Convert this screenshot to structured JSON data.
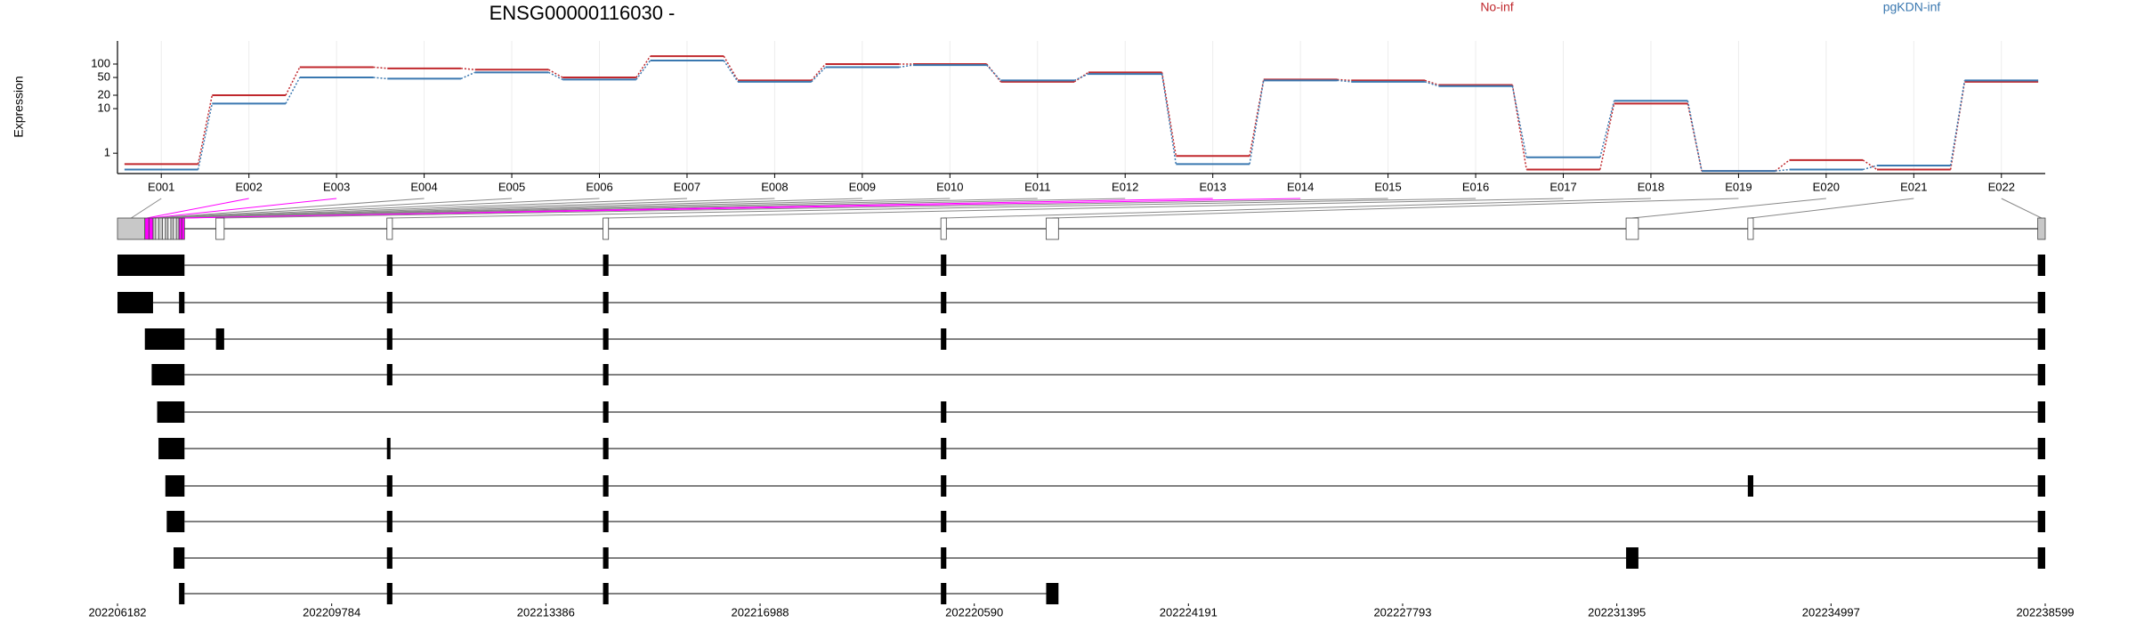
{
  "chart_data": {
    "type": "line",
    "title": "ENSG00000116030 -",
    "y_label": "Expression",
    "y_scale": "log",
    "ylim": [
      0.35,
      330
    ],
    "yticks": [
      1,
      10,
      20,
      50,
      100
    ],
    "grid": true,
    "categories": [
      "E001",
      "E002",
      "E003",
      "E004",
      "E005",
      "E006",
      "E007",
      "E008",
      "E009",
      "E010",
      "E011",
      "E012",
      "E013",
      "E014",
      "E015",
      "E016",
      "E017",
      "E018",
      "E019",
      "E020",
      "E021",
      "E022"
    ],
    "series": [
      {
        "name": "No-inf",
        "color": "#c0282d",
        "values": [
          0.57,
          20,
          85,
          80,
          75,
          50,
          150,
          43,
          100,
          100,
          40,
          65,
          0.87,
          45,
          43,
          34,
          0.43,
          13,
          0.4,
          0.7,
          0.43,
          40
        ]
      },
      {
        "name": "pgKDN-inf",
        "color": "#3a78b0",
        "values": [
          0.43,
          13,
          50,
          47,
          65,
          45,
          120,
          40,
          85,
          95,
          43,
          60,
          0.57,
          43,
          40,
          32,
          0.81,
          15,
          0.4,
          0.43,
          0.53,
          43
        ]
      }
    ],
    "gene_model": {
      "xlim": [
        202206182,
        202238599
      ],
      "xticks": [
        202206182,
        202209784,
        202213386,
        202216988,
        202220590,
        202224191,
        202227793,
        202231395,
        202234997,
        202238599
      ],
      "highlight_color": "#ff00ff",
      "exons": [
        [
          202206182,
          202206642
        ],
        [
          202206642,
          202206711
        ],
        [
          202206711,
          202206780
        ],
        [
          202206780,
          202206826
        ],
        [
          202206826,
          202206872
        ],
        [
          202206872,
          202206941
        ],
        [
          202206941,
          202206987
        ],
        [
          202206987,
          202207033
        ],
        [
          202207033,
          202207079
        ],
        [
          202207079,
          202207125
        ],
        [
          202207125,
          202207171
        ],
        [
          202207171,
          202207217
        ],
        [
          202207217,
          202207263
        ],
        [
          202207263,
          202207309
        ],
        [
          202207838,
          202207976
        ],
        [
          202210713,
          202210805
        ],
        [
          202214347,
          202214439
        ],
        [
          202220028,
          202220120
        ],
        [
          202221799,
          202222006
        ],
        [
          202231551,
          202231758
        ],
        [
          202233598,
          202233690
        ],
        [
          202238474,
          202238599
        ]
      ],
      "exon_colors": [
        "#c8c8c8",
        "#ff00ff",
        "#ff00ff",
        "#c8c8c8",
        "#ffffff",
        "#c8c8c8",
        "#ffffff",
        "#c8c8c8",
        "#ffffff",
        "#c8c8c8",
        "#ffffff",
        "#c8c8c8",
        "#ff00ff",
        "#ff00ff",
        "#ffffff",
        "#ffffff",
        "#ffffff",
        "#ffffff",
        "#ffffff",
        "#ffffff",
        "#ffffff",
        "#c8c8c8"
      ],
      "transcripts": [
        [
          [
            202206182,
            202207309
          ],
          [
            202210713,
            202210805
          ],
          [
            202214347,
            202214439
          ],
          [
            202220028,
            202220120
          ],
          [
            202238474,
            202238599
          ]
        ],
        [
          [
            202206182,
            202206780
          ],
          [
            202207217,
            202207309
          ],
          [
            202210713,
            202210805
          ],
          [
            202214347,
            202214439
          ],
          [
            202220028,
            202220120
          ],
          [
            202238474,
            202238599
          ]
        ],
        [
          [
            202206642,
            202207309
          ],
          [
            202207838,
            202207976
          ],
          [
            202210713,
            202210805
          ],
          [
            202214347,
            202214439
          ],
          [
            202220028,
            202220120
          ],
          [
            202238474,
            202238599
          ]
        ],
        [
          [
            202206757,
            202207309
          ],
          [
            202210713,
            202210805
          ],
          [
            202214347,
            202214439
          ],
          [
            202238474,
            202238599
          ]
        ],
        [
          [
            202206849,
            202207309
          ],
          [
            202214347,
            202214439
          ],
          [
            202220028,
            202220120
          ],
          [
            202238474,
            202238599
          ]
        ],
        [
          [
            202206872,
            202207309
          ],
          [
            202210713,
            202210759
          ],
          [
            202214347,
            202214439
          ],
          [
            202220028,
            202220120
          ],
          [
            202238474,
            202238599
          ]
        ],
        [
          [
            202206987,
            202207309
          ],
          [
            202210713,
            202210805
          ],
          [
            202214347,
            202214439
          ],
          [
            202220028,
            202220120
          ],
          [
            202233598,
            202233690
          ],
          [
            202238474,
            202238599
          ]
        ],
        [
          [
            202207010,
            202207309
          ],
          [
            202210713,
            202210805
          ],
          [
            202214347,
            202214439
          ],
          [
            202220028,
            202220120
          ],
          [
            202238474,
            202238599
          ]
        ],
        [
          [
            202207125,
            202207309
          ],
          [
            202210713,
            202210805
          ],
          [
            202214347,
            202214439
          ],
          [
            202220028,
            202220120
          ],
          [
            202231551,
            202231758
          ],
          [
            202238474,
            202238599
          ]
        ],
        [
          [
            202207217,
            202207309
          ],
          [
            202210713,
            202210805
          ],
          [
            202214347,
            202214439
          ],
          [
            202220028,
            202220120
          ],
          [
            202221799,
            202222006
          ]
        ]
      ]
    }
  }
}
